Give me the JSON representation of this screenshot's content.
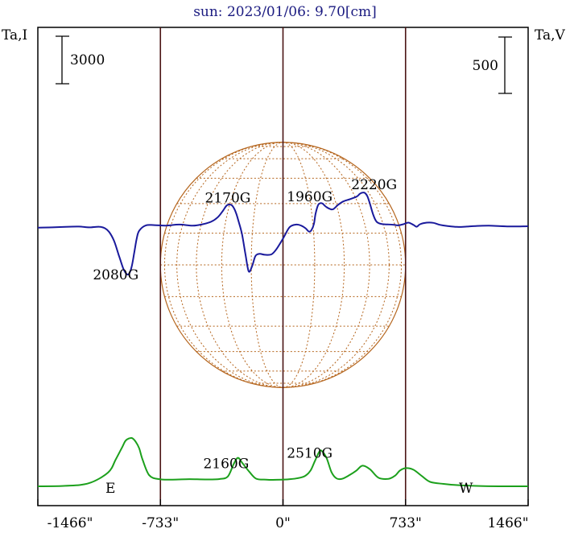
{
  "chart_data": {
    "type": "line",
    "title": "sun: 2023/01/06: 9.70[cm]",
    "y_left_label": "Ta,I",
    "y_right_label": "Ta,V",
    "x_ticks": [
      "-1466\"",
      "-733\"",
      "0\"",
      "733\"",
      "1466\""
    ],
    "x_tick_values": [
      -1466,
      -733,
      0,
      733,
      1466
    ],
    "xlim": [
      -1466,
      1466
    ],
    "scale_bar_left": "3000",
    "scale_bar_right": "500",
    "limb_left_label": "E",
    "limb_right_label": "W",
    "limb_positions": [
      -733,
      733
    ],
    "solar_radius_arcsec": 733,
    "grid": false,
    "series": [
      {
        "key": "I",
        "color": "#1ca01c",
        "x": [
          -1466,
          -1300,
          -1160,
          -1045,
          -1000,
          -960,
          -940,
          -905,
          -880,
          -860,
          -840,
          -800,
          -740,
          -660,
          -560,
          -460,
          -380,
          -330,
          -295,
          -270,
          -245,
          -200,
          -160,
          -100,
          -40,
          20,
          80,
          130,
          165,
          190,
          215,
          230,
          260,
          290,
          320,
          355,
          400,
          440,
          475,
          520,
          570,
          630,
          670,
          700,
          735,
          780,
          830,
          880,
          960,
          1060,
          1200,
          1330,
          1466
        ],
        "y": [
          0,
          30,
          200,
          880,
          1700,
          2500,
          2900,
          3050,
          2800,
          2400,
          1700,
          700,
          450,
          420,
          450,
          430,
          460,
          620,
          1400,
          1800,
          1500,
          900,
          480,
          420,
          410,
          430,
          500,
          640,
          1000,
          1580,
          2150,
          2250,
          1800,
          900,
          500,
          480,
          720,
          1000,
          1300,
          1080,
          550,
          470,
          670,
          1000,
          1150,
          1050,
          650,
          280,
          150,
          60,
          10,
          0,
          0
        ]
      },
      {
        "key": "V",
        "color": "#1a1a9c",
        "x": [
          -1466,
          -1380,
          -1300,
          -1220,
          -1160,
          -1100,
          -1065,
          -1040,
          -1010,
          -980,
          -955,
          -935,
          -920,
          -905,
          -890,
          -875,
          -860,
          -820,
          -770,
          -700,
          -620,
          -540,
          -480,
          -430,
          -390,
          -360,
          -335,
          -310,
          -295,
          -280,
          -265,
          -245,
          -225,
          -205,
          -185,
          -165,
          -140,
          -110,
          -70,
          -40,
          0,
          40,
          80,
          110,
          135,
          155,
          170,
          185,
          195,
          210,
          225,
          238,
          248,
          260,
          280,
          300,
          330,
          360,
          400,
          440,
          460,
          475,
          490,
          505,
          520,
          540,
          560,
          590,
          630,
          665,
          690,
          720,
          750,
          780,
          800,
          820,
          860,
          900,
          940,
          980,
          1040,
          1100,
          1160,
          1230,
          1300,
          1380,
          1466
        ],
        "y": [
          -12,
          -10,
          -5,
          -3,
          -10,
          -4,
          -18,
          -50,
          -130,
          -265,
          -375,
          -424,
          -420,
          -360,
          -240,
          -110,
          -40,
          8,
          10,
          6,
          15,
          5,
          18,
          40,
          80,
          135,
          186,
          190,
          165,
          115,
          40,
          -70,
          -245,
          -400,
          -355,
          -265,
          -245,
          -253,
          -250,
          -205,
          -110,
          -8,
          15,
          5,
          -18,
          -47,
          -35,
          20,
          112,
          188,
          205,
          200,
          185,
          170,
          154,
          151,
          190,
          220,
          240,
          262,
          288,
          298,
          295,
          265,
          200,
          100,
          40,
          20,
          16,
          12,
          8,
          18,
          32,
          12,
          -4,
          18,
          32,
          30,
          12,
          3,
          -6,
          -3,
          3,
          5,
          1,
          -2,
          0
        ]
      }
    ],
    "annotations": [
      {
        "text": "2080G",
        "x": -1000,
        "y_value": -470,
        "axis": "V"
      },
      {
        "text": "2170G",
        "x": -330,
        "y_value": 210,
        "axis": "V"
      },
      {
        "text": "2160G",
        "x": -340,
        "y_value": 1150,
        "axis": "I"
      },
      {
        "text": "1960G",
        "x": 160,
        "y_value": 220,
        "axis": "V"
      },
      {
        "text": "2220G",
        "x": 545,
        "y_value": 330,
        "axis": "V"
      },
      {
        "text": "2510G",
        "x": 160,
        "y_value": 1800,
        "axis": "I"
      }
    ]
  }
}
